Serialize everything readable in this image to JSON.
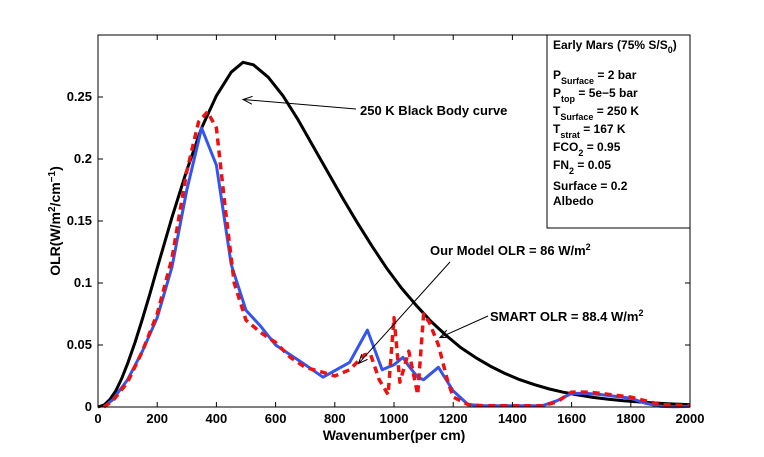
{
  "chart_data": {
    "type": "line",
    "title": "",
    "xlabel": "Wavenumber(per cm)",
    "ylabel_base": "OLR(W/m",
    "ylabel_sup1": "2",
    "ylabel_mid": "/cm",
    "ylabel_sup2": "−1",
    "ylabel_end": ")",
    "xlim": [
      0,
      2000
    ],
    "ylim": [
      0,
      0.3
    ],
    "xticks": [
      0,
      200,
      400,
      600,
      800,
      1000,
      1200,
      1400,
      1600,
      1800,
      2000
    ],
    "yticks": [
      0,
      0.05,
      0.1,
      0.15,
      0.2,
      0.25
    ],
    "ytick_labels": [
      "0",
      "0.05",
      "0.1",
      "0.15",
      "0.2",
      "0.25"
    ],
    "series": [
      {
        "name": "250 K Black Body curve",
        "color": "#000000",
        "style": "solid",
        "x": [
          0,
          20,
          40,
          60,
          80,
          100,
          125,
          150,
          175,
          200,
          250,
          300,
          350,
          400,
          450,
          490,
          525,
          575,
          625,
          675,
          725,
          775,
          825,
          875,
          925,
          975,
          1025,
          1075,
          1125,
          1175,
          1225,
          1275,
          1325,
          1375,
          1425,
          1475,
          1525,
          1575,
          1625,
          1675,
          1725,
          1775,
          1825,
          1875,
          1925,
          1975,
          2000
        ],
        "y": [
          0,
          0.0015,
          0.006,
          0.013,
          0.023,
          0.035,
          0.052,
          0.071,
          0.091,
          0.112,
          0.153,
          0.191,
          0.225,
          0.251,
          0.27,
          0.278,
          0.276,
          0.266,
          0.251,
          0.232,
          0.211,
          0.19,
          0.169,
          0.149,
          0.13,
          0.112,
          0.096,
          0.082,
          0.069,
          0.058,
          0.048,
          0.04,
          0.033,
          0.027,
          0.022,
          0.018,
          0.0145,
          0.0118,
          0.0095,
          0.0077,
          0.0062,
          0.005,
          0.0041,
          0.0033,
          0.0026,
          0.0021,
          0.0018
        ]
      },
      {
        "name": "Our Model OLR",
        "color": "#3355ee",
        "style": "solid",
        "x": [
          20,
          50,
          100,
          150,
          200,
          250,
          300,
          350,
          400,
          450,
          500,
          550,
          600,
          650,
          700,
          760,
          850,
          910,
          960,
          1000,
          1030,
          1050,
          1080,
          1100,
          1150,
          1200,
          1250,
          1300,
          1400,
          1500,
          1550,
          1600,
          1650,
          1700,
          1800,
          1850,
          1900,
          1950,
          2000
        ],
        "y": [
          0,
          0.006,
          0.022,
          0.045,
          0.072,
          0.113,
          0.175,
          0.225,
          0.195,
          0.115,
          0.078,
          0.065,
          0.05,
          0.042,
          0.034,
          0.024,
          0.036,
          0.062,
          0.03,
          0.034,
          0.04,
          0.033,
          0.024,
          0.022,
          0.032,
          0.013,
          0.002,
          0.001,
          0.001,
          0.001,
          0.005,
          0.011,
          0.011,
          0.01,
          0.007,
          0.003,
          0.0005,
          0.0002,
          0.0005
        ]
      },
      {
        "name": "SMART OLR",
        "color": "#ee1111",
        "style": "dashed",
        "x": [
          20,
          50,
          100,
          150,
          200,
          250,
          300,
          340,
          370,
          400,
          430,
          460,
          500,
          550,
          600,
          650,
          700,
          760,
          800,
          850,
          900,
          920,
          950,
          980,
          1000,
          1020,
          1050,
          1080,
          1100,
          1120,
          1150,
          1180,
          1200,
          1250,
          1300,
          1400,
          1500,
          1550,
          1600,
          1650,
          1700,
          1800,
          1900,
          2000
        ],
        "y": [
          0,
          0.005,
          0.02,
          0.045,
          0.075,
          0.12,
          0.19,
          0.23,
          0.238,
          0.225,
          0.16,
          0.1,
          0.07,
          0.06,
          0.052,
          0.04,
          0.032,
          0.028,
          0.025,
          0.03,
          0.042,
          0.043,
          0.022,
          0.01,
          0.072,
          0.02,
          0.045,
          0.01,
          0.075,
          0.068,
          0.05,
          0.022,
          0.008,
          0.002,
          0.001,
          0.001,
          0.001,
          0.004,
          0.012,
          0.012,
          0.011,
          0.008,
          0.002,
          0.001
        ]
      }
    ],
    "annotations": [
      {
        "text": "250 K Black Body curve",
        "arrow_to": [
          490,
          0.248
        ]
      },
      {
        "text_base": "Our Model OLR = 86 W/m",
        "text_sup": "2",
        "arrow_to": [
          880,
          0.035
        ]
      },
      {
        "text_base": "SMART OLR =  88.4 W/m",
        "text_sup": "2",
        "arrow_to": [
          1155,
          0.056
        ]
      }
    ],
    "legend": {
      "placement": "top-right",
      "title_base": "Early Mars (75% S/S",
      "title_sub": "0",
      "title_end": ")",
      "items": [
        {
          "base": "P",
          "sub": "Surface",
          "rest": " = 2 bar"
        },
        {
          "base": "P",
          "sub": "top",
          "rest": " = 5e−5 bar"
        },
        {
          "base": "T",
          "sub": "Surface",
          "rest": " = 250 K"
        },
        {
          "base": "T",
          "sub": "strat",
          "rest": " = 167 K"
        },
        {
          "base": "FCO",
          "sub": "2",
          "rest": "     = 0.95"
        },
        {
          "base": "FN",
          "sub": "2",
          "rest": "     = 0.05"
        },
        {
          "base": "Surface",
          "sub": "",
          "rest": "     = 0.2"
        },
        {
          "base": "Albedo",
          "sub": "",
          "rest": ""
        }
      ]
    }
  }
}
